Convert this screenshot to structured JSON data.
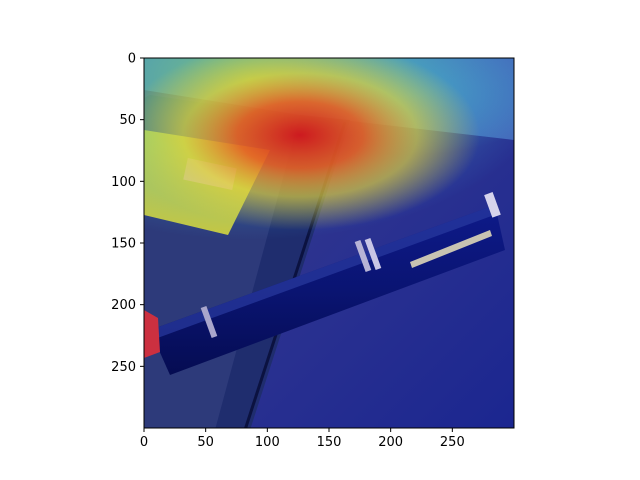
{
  "figure": {
    "x_axis": {
      "range": [
        0,
        300
      ],
      "ticks": [
        0,
        50,
        100,
        150,
        200,
        250
      ],
      "tick_labels": [
        "0",
        "50",
        "100",
        "150",
        "200",
        "250"
      ]
    },
    "y_axis": {
      "range": [
        0,
        300
      ],
      "inverted": true,
      "ticks": [
        0,
        50,
        100,
        150,
        200,
        250
      ],
      "tick_labels": [
        "0",
        "50",
        "100",
        "150",
        "200",
        "250"
      ]
    },
    "image": {
      "subject": "pen-on-notebook",
      "overlay": "attention-heatmap",
      "colormap": "jet"
    }
  }
}
